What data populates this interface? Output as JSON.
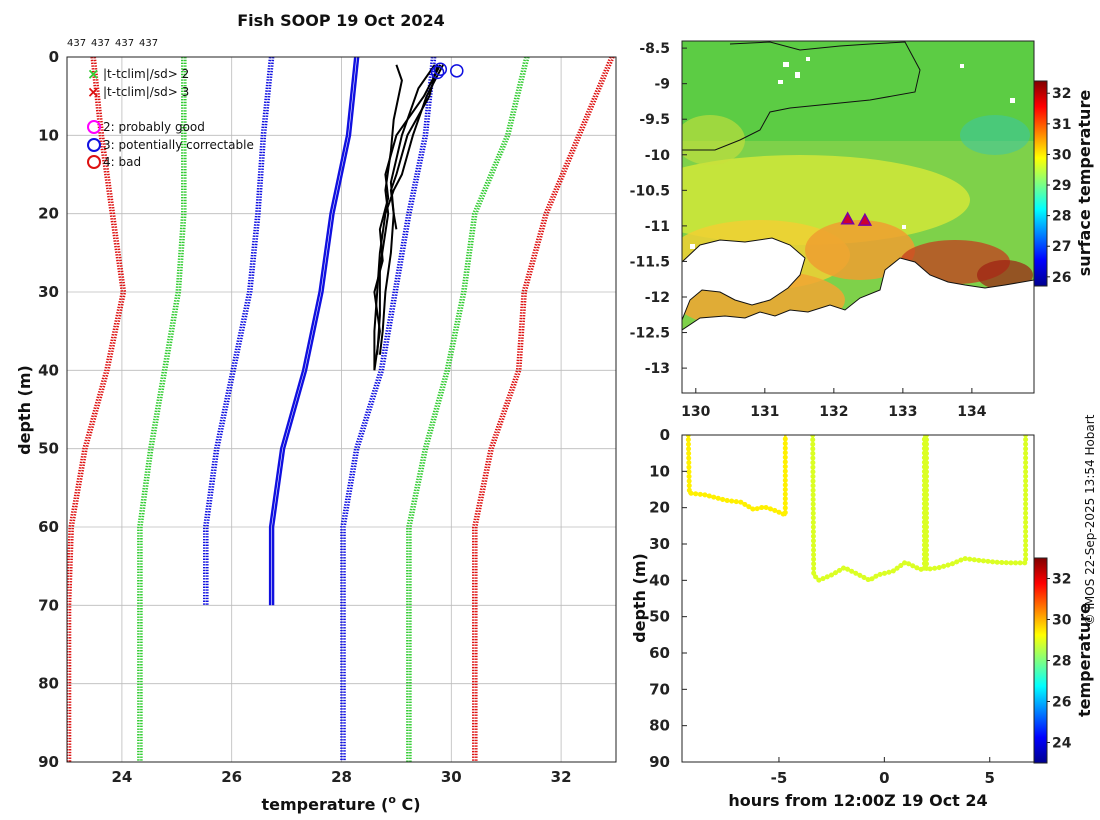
{
  "figure": {
    "title": "Fish SOOP 19 Oct 2024",
    "profile_ids": [
      "437",
      "437",
      "437",
      "437"
    ],
    "credit": "© IMOS 22-Sep-2025 13:54 Hobart"
  },
  "colors": {
    "climatology_mean": "#1010e0",
    "sd2": "#33cc33",
    "sd3": "#dd1111",
    "profile": "#000000",
    "land": "#ffffff"
  },
  "legend": {
    "flag_items": [
      {
        "symbol": "×",
        "color": "#33cc33",
        "label": "|t-tclim|/sd> 2"
      },
      {
        "symbol": "×",
        "color": "#dd1111",
        "label": "|t-tclim|/sd> 3"
      }
    ],
    "qc_items": [
      {
        "color": "#ff00ff",
        "label": "2: probably good"
      },
      {
        "color": "#1010e0",
        "label": "3: potentially correctable"
      },
      {
        "color": "#dd1111",
        "label": "4: bad"
      }
    ]
  },
  "chart_data": [
    {
      "type": "line",
      "name": "profile",
      "title": "Fish SOOP 19 Oct 2024",
      "xlabel": "temperature (o C)",
      "ylabel": "depth (m)",
      "xlim": [
        23,
        33
      ],
      "ylim": [
        90,
        0
      ],
      "xticks": [
        24,
        26,
        28,
        30,
        32
      ],
      "yticks": [
        0,
        10,
        20,
        30,
        40,
        50,
        60,
        70,
        80,
        90
      ],
      "grid": true,
      "climatology_depths": [
        0,
        10,
        20,
        30,
        40,
        50,
        60,
        70
      ],
      "series": [
        {
          "name": "mean",
          "style": "solid",
          "color": "#1010e0",
          "values": [
            28.25,
            28.1,
            27.8,
            27.6,
            27.3,
            26.9,
            26.7,
            26.7
          ],
          "last_depth": 70
        },
        {
          "name": "mean+sd",
          "style": "dotted",
          "color": "#1010e0",
          "values": [
            29.65,
            29.5,
            29.2,
            28.95,
            28.7,
            28.25,
            28.0,
            28.0
          ],
          "last_depth": 90
        },
        {
          "name": "mean-sd",
          "style": "dotted",
          "color": "#1010e0",
          "values": [
            26.7,
            26.55,
            26.45,
            26.3,
            26.0,
            25.7,
            25.5,
            25.5
          ],
          "last_depth": 70
        },
        {
          "name": "mean+2sd",
          "style": "dotted",
          "color": "#33cc33",
          "values": [
            31.35,
            31.0,
            30.4,
            30.2,
            29.9,
            29.5,
            29.2,
            29.2
          ],
          "last_depth": 90
        },
        {
          "name": "mean-2sd",
          "style": "dotted",
          "color": "#33cc33",
          "values": [
            25.1,
            25.1,
            25.1,
            25.0,
            24.75,
            24.5,
            24.3,
            24.3
          ],
          "last_depth": 90
        },
        {
          "name": "mean+3sd",
          "style": "dotted",
          "color": "#dd1111",
          "values": [
            32.9,
            32.3,
            31.7,
            31.3,
            31.2,
            30.7,
            30.4,
            30.4
          ],
          "last_depth": 90
        },
        {
          "name": "mean-3sd",
          "style": "dotted",
          "color": "#dd1111",
          "values": [
            23.45,
            23.6,
            23.8,
            24.0,
            23.7,
            23.3,
            23.05,
            23.0
          ],
          "last_depth": 90
        }
      ],
      "profiles": [
        {
          "name": "cast-1",
          "depths": [
            1,
            5,
            10,
            15,
            17,
            20,
            25,
            30,
            35,
            38
          ],
          "temps": [
            29.75,
            29.6,
            29.2,
            29.0,
            28.9,
            28.95,
            28.9,
            28.8,
            28.75,
            28.7
          ]
        },
        {
          "name": "cast-2",
          "depths": [
            1,
            5,
            10,
            15,
            18,
            22,
            26,
            30,
            35,
            40
          ],
          "temps": [
            29.8,
            29.5,
            29.0,
            28.8,
            28.85,
            28.7,
            28.75,
            28.6,
            28.7,
            28.6
          ]
        },
        {
          "name": "cast-3",
          "depths": [
            1,
            4,
            10,
            16,
            20,
            22
          ],
          "temps": [
            29.7,
            29.4,
            29.1,
            28.9,
            28.95,
            29.0
          ]
        },
        {
          "name": "cast-4",
          "depths": [
            1,
            5,
            10,
            15,
            17,
            20,
            25,
            30,
            35,
            40
          ],
          "temps": [
            29.85,
            29.55,
            29.3,
            29.1,
            28.95,
            28.8,
            28.7,
            28.65,
            28.6,
            28.6
          ]
        },
        {
          "name": "cast-5",
          "depths": [
            1,
            3,
            8,
            12,
            17,
            20,
            27,
            33,
            38
          ],
          "temps": [
            29.0,
            29.1,
            28.95,
            28.9,
            28.8,
            28.85,
            28.7,
            28.7,
            28.65
          ]
        }
      ],
      "qc_markers": [
        {
          "temp": 29.8,
          "depth": 0.8,
          "flag": 3
        },
        {
          "temp": 30.1,
          "depth": 1.0,
          "flag": 3
        },
        {
          "temp": 29.75,
          "depth": 1.2,
          "flag": 3
        }
      ]
    },
    {
      "type": "heatmap",
      "name": "sst-map",
      "xlim": [
        129.8,
        134.9
      ],
      "ylim": [
        -13.35,
        -8.4
      ],
      "xticks": [
        130,
        131,
        132,
        133,
        134
      ],
      "yticks": [
        -8.5,
        -9,
        -9.5,
        -10,
        -10.5,
        -11,
        -11.5,
        -12,
        -12.5,
        -13
      ],
      "colorbar": {
        "label": "surface temperature",
        "range": [
          25.7,
          32.4
        ],
        "ticks": [
          26,
          27,
          28,
          29,
          30,
          31,
          32
        ]
      },
      "markers": [
        {
          "lon": 132.2,
          "lat": -10.9
        },
        {
          "lon": 132.45,
          "lat": -10.92
        }
      ]
    },
    {
      "type": "scatter",
      "name": "depth-time",
      "xlabel": "hours from 12:00Z 19 Oct 24",
      "ylabel": "depth (m)",
      "xlim": [
        -9.6,
        7.1
      ],
      "ylim": [
        90,
        0
      ],
      "xticks": [
        -5,
        0,
        5
      ],
      "yticks": [
        0,
        10,
        20,
        30,
        40,
        50,
        60,
        70,
        80,
        90
      ],
      "colorbar": {
        "label": "temperature",
        "range": [
          23,
          33
        ],
        "ticks": [
          24,
          26,
          28,
          30,
          32
        ]
      },
      "segments": [
        {
          "temp": 29.4,
          "points": [
            [
              -9.3,
              0
            ],
            [
              -9.25,
              16
            ],
            [
              -8.5,
              16.5
            ],
            [
              -7.5,
              18
            ],
            [
              -6.8,
              18.5
            ],
            [
              -6.2,
              20.5
            ],
            [
              -5.7,
              19.8
            ],
            [
              -5.3,
              20.5
            ],
            [
              -4.7,
              22
            ],
            [
              -4.7,
              0
            ]
          ]
        },
        {
          "temp": 28.9,
          "points": [
            [
              -3.4,
              0
            ],
            [
              -3.35,
              38.5
            ],
            [
              -3.1,
              40
            ],
            [
              -2.5,
              38.5
            ],
            [
              -1.9,
              36.5
            ],
            [
              -1.2,
              38.5
            ],
            [
              -0.7,
              40
            ],
            [
              -0.3,
              38.5
            ],
            [
              0.4,
              37.5
            ],
            [
              1.0,
              35
            ],
            [
              1.7,
              37
            ],
            [
              1.9,
              37
            ],
            [
              1.9,
              0
            ]
          ]
        },
        {
          "temp": 28.9,
          "points": [
            [
              2.0,
              0
            ],
            [
              2.0,
              37
            ],
            [
              2.6,
              36.5
            ],
            [
              3.2,
              35.5
            ],
            [
              3.8,
              34
            ],
            [
              4.5,
              34.5
            ],
            [
              5.3,
              35
            ],
            [
              6.0,
              35.2
            ],
            [
              6.7,
              35.2
            ],
            [
              6.7,
              0
            ]
          ]
        }
      ]
    }
  ]
}
